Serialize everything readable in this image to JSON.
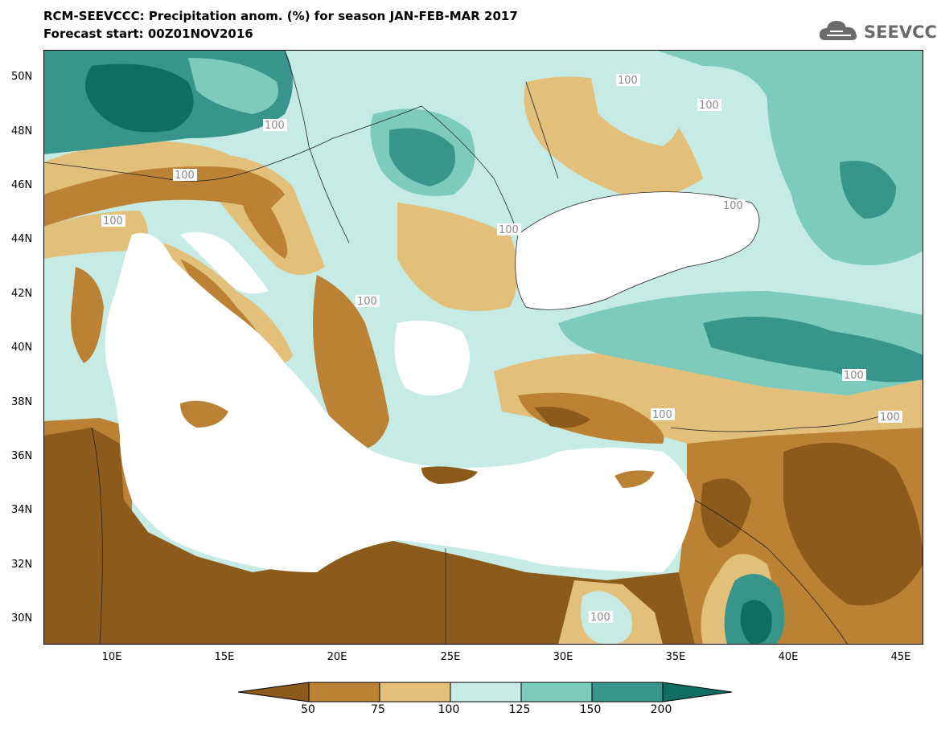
{
  "header": {
    "title_line1": "RCM-SEEVCCC: Precipitation anom. (%) for season JAN-FEB-MAR 2017",
    "title_line2": "Forecast start: 00Z01NOV2016",
    "logo_text": "SEEVCCC",
    "logo_icon": "cloud-icon"
  },
  "map": {
    "lat_labels": [
      "50N",
      "48N",
      "46N",
      "44N",
      "42N",
      "40N",
      "38N",
      "36N",
      "34N",
      "32N",
      "30N"
    ],
    "lon_labels": [
      "10E",
      "15E",
      "20E",
      "25E",
      "30E",
      "35E",
      "40E",
      "45E"
    ],
    "contour_labels": [
      "100",
      "100",
      "100",
      "100",
      "100",
      "100",
      "100",
      "100",
      "100",
      "100",
      "100",
      "100"
    ],
    "extent": {
      "lon_min": 7,
      "lon_max": 46,
      "lat_min": 29,
      "lat_max": 51
    }
  },
  "colorbar": {
    "labels": [
      "50",
      "75",
      "100",
      "125",
      "150",
      "200"
    ],
    "colors": [
      "#8c5a1a",
      "#bb8135",
      "#e2c07a",
      "#c6ebe4",
      "#7ccbbd",
      "#38958c",
      "#0f6d63"
    ]
  },
  "colors": {
    "brown_dark": "#8c5a1a",
    "brown": "#bb8135",
    "tan": "#e2c07a",
    "pale_teal": "#c6ebe4",
    "teal": "#7ccbbd",
    "teal_dark": "#38958c",
    "teal_deep": "#0f6d63",
    "sea": "#ffffff"
  }
}
